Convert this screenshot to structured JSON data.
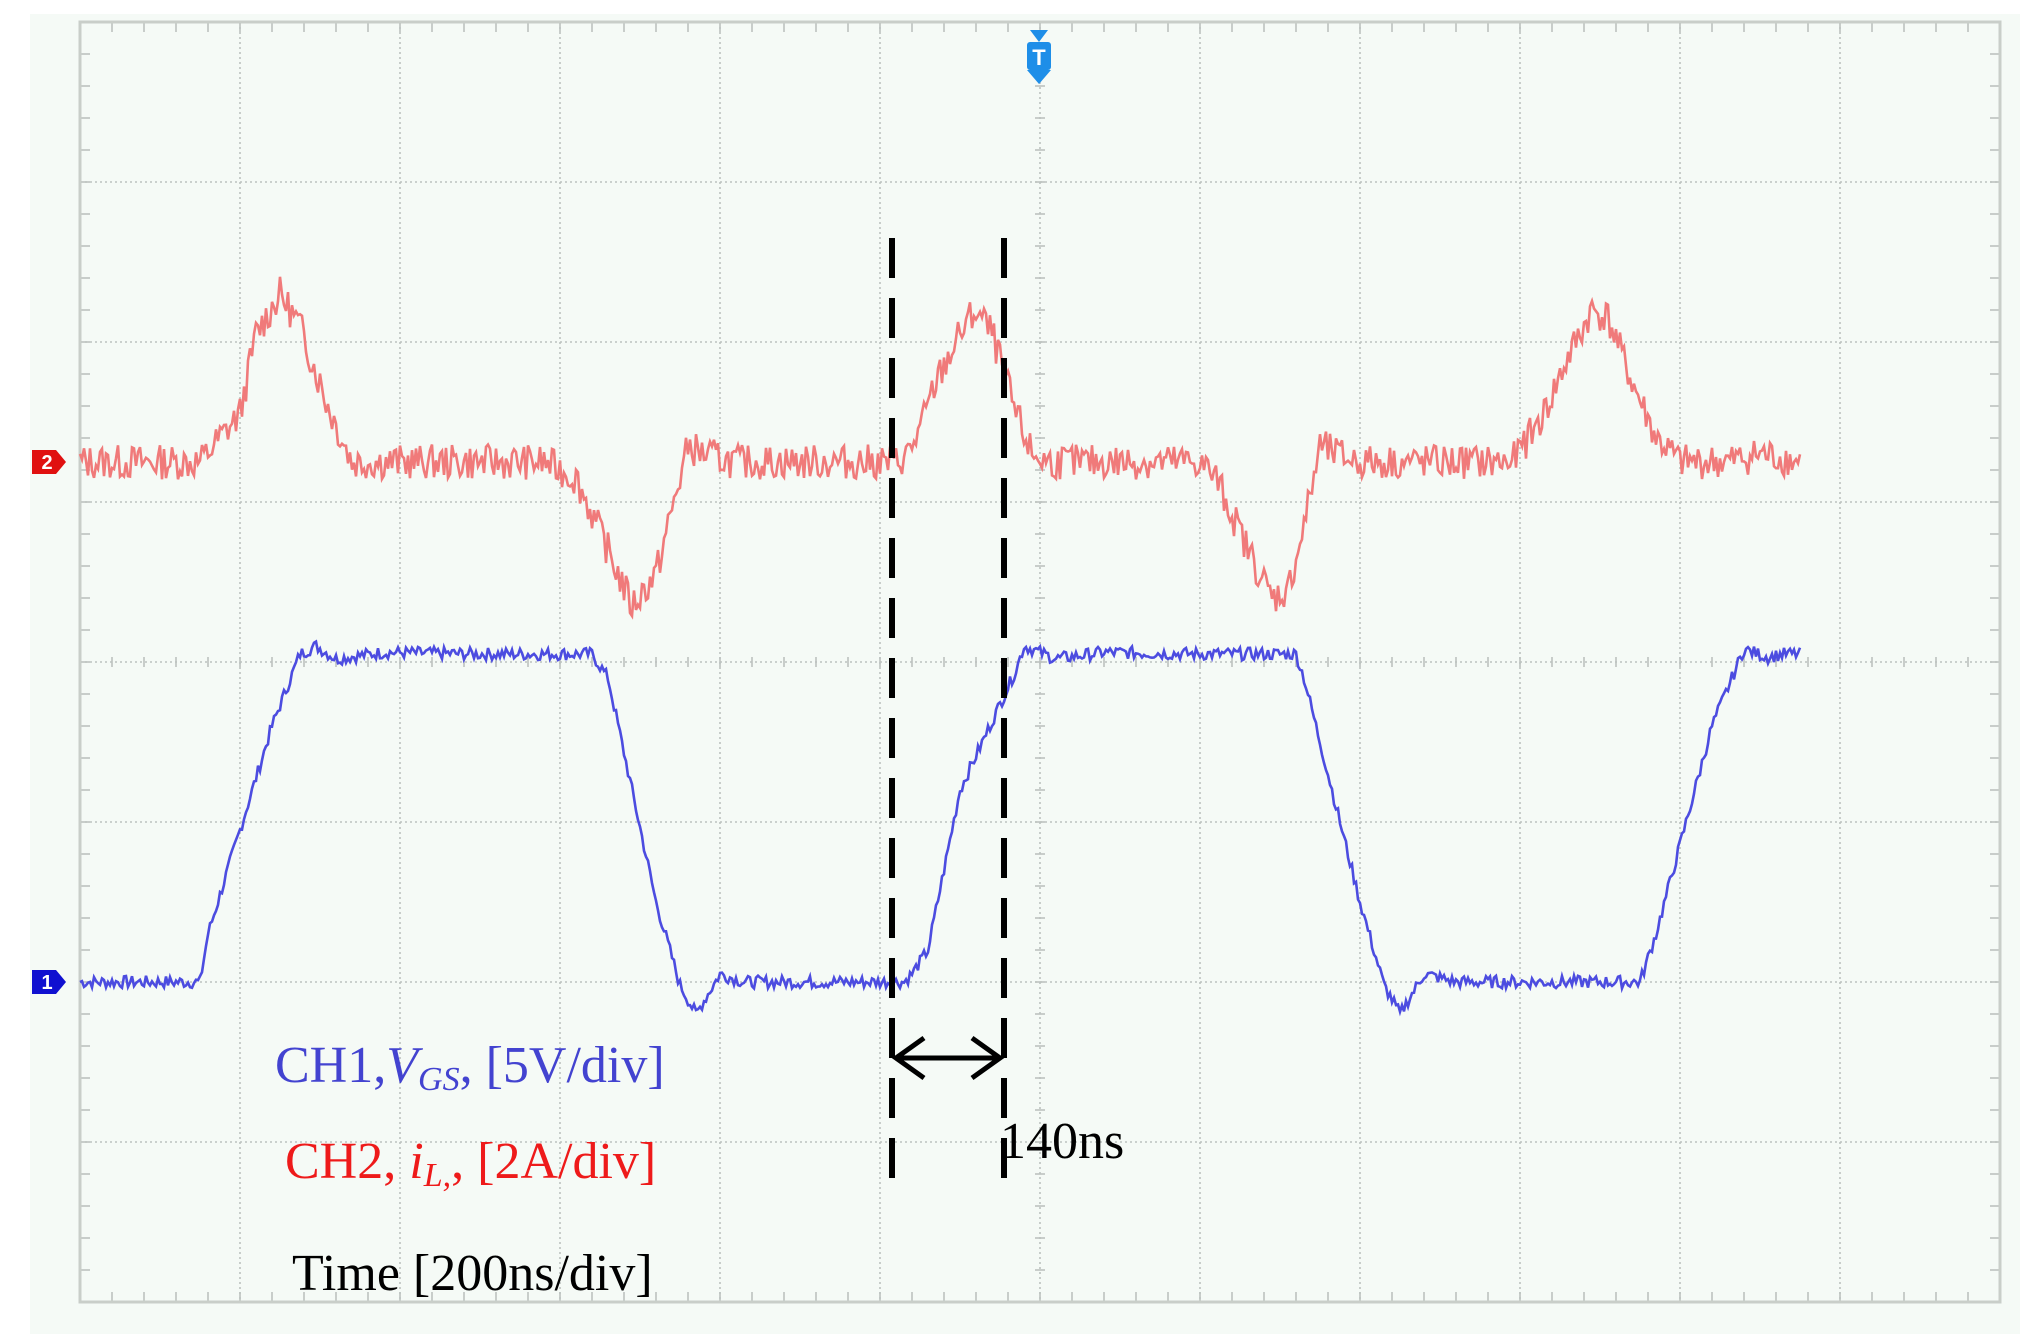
{
  "colors": {
    "background": "#f5faf6",
    "grid": "#bcc2bf",
    "border": "#c9cec9",
    "ch1": "#4c4ce0",
    "ch2": "#f07a7a",
    "ch1_label": "#4343d0",
    "ch2_label": "#ee1a1a",
    "trigger": "#1e8ee8",
    "annotation": "#000000"
  },
  "markers": {
    "ch1": "1",
    "ch2": "2",
    "trigger": "T"
  },
  "labels": {
    "ch1_prefix": "CH1,",
    "ch1_var": "V",
    "ch1_sub": "GS",
    "ch1_suffix": ", [5V/div]",
    "ch2_prefix": "CH2,",
    "ch2_var": "i",
    "ch2_sub": "L,",
    "ch2_suffix": ", [2A/div]",
    "time": "Time [200ns/div]",
    "measurement": "140ns"
  },
  "chart_data": {
    "type": "line",
    "x_unit_div": 200,
    "xlim": [
      -1200,
      1200
    ],
    "ylim": [
      -4,
      4
    ],
    "grid": true,
    "x_divisions": 12,
    "y_divisions": 8,
    "series": [
      {
        "name": "CH1",
        "scale": "5V/div",
        "offset_div": -2,
        "points": [
          [
            -1200,
            0
          ],
          [
            -1050,
            0
          ],
          [
            -1040,
            0.3
          ],
          [
            -960,
            1.6
          ],
          [
            -925,
            2.05
          ],
          [
            -905,
            2.1
          ],
          [
            -880,
            2.02
          ],
          [
            -820,
            2.06
          ],
          [
            -700,
            2.05
          ],
          [
            -560,
            2.05
          ],
          [
            -540,
            1.9
          ],
          [
            -480,
            0.5
          ],
          [
            -450,
            -0.02
          ],
          [
            -430,
            -0.2
          ],
          [
            -400,
            0.05
          ],
          [
            -370,
            0.0
          ],
          [
            -300,
            0
          ],
          [
            -180,
            0
          ],
          [
            -170,
            0
          ],
          [
            -160,
            0.05
          ],
          [
            -140,
            0.2
          ],
          [
            -100,
            1.2
          ],
          [
            -30,
            1.95
          ],
          [
            -20,
            2.1
          ],
          [
            20,
            2.02
          ],
          [
            80,
            2.06
          ],
          [
            200,
            2.05
          ],
          [
            320,
            2.05
          ],
          [
            330,
            1.9
          ],
          [
            400,
            0.5
          ],
          [
            430,
            -0.02
          ],
          [
            450,
            -0.2
          ],
          [
            480,
            0.05
          ],
          [
            520,
            0.0
          ],
          [
            600,
            0
          ],
          [
            750,
            0
          ],
          [
            770,
            0.3
          ],
          [
            840,
            1.6
          ],
          [
            880,
            2.08
          ],
          [
            910,
            2.03
          ],
          [
            930,
            2.05
          ],
          [
            950,
            2.05
          ]
        ]
      },
      {
        "name": "CH2",
        "scale": "2A/div",
        "offset_div": 1.25,
        "points": [
          [
            -1200,
            0
          ],
          [
            -1050,
            0
          ],
          [
            -1000,
            0.3
          ],
          [
            -980,
            0.8
          ],
          [
            -950,
            1.05
          ],
          [
            -925,
            0.85
          ],
          [
            -890,
            0.35
          ],
          [
            -860,
            0.0
          ],
          [
            -800,
            0
          ],
          [
            -620,
            0
          ],
          [
            -580,
            -0.1
          ],
          [
            -540,
            -0.55
          ],
          [
            -510,
            -0.9
          ],
          [
            -480,
            -0.7
          ],
          [
            -460,
            -0.3
          ],
          [
            -440,
            0.1
          ],
          [
            -420,
            0.05
          ],
          [
            -380,
            0
          ],
          [
            -180,
            0
          ],
          [
            -165,
            0.05
          ],
          [
            -150,
            0.2
          ],
          [
            -130,
            0.5
          ],
          [
            -100,
            0.8
          ],
          [
            -80,
            0.95
          ],
          [
            -60,
            0.8
          ],
          [
            -30,
            0.3
          ],
          [
            -10,
            0.05
          ],
          [
            10,
            0
          ],
          [
            200,
            0
          ],
          [
            220,
            -0.1
          ],
          [
            260,
            -0.55
          ],
          [
            290,
            -0.85
          ],
          [
            310,
            -0.8
          ],
          [
            330,
            -0.4
          ],
          [
            350,
            0.1
          ],
          [
            370,
            0.05
          ],
          [
            400,
            0
          ],
          [
            590,
            0
          ],
          [
            630,
            0.3
          ],
          [
            660,
            0.65
          ],
          [
            690,
            0.95
          ],
          [
            710,
            0.9
          ],
          [
            740,
            0.5
          ],
          [
            770,
            0.15
          ],
          [
            800,
            0.0
          ],
          [
            860,
            0.0
          ],
          [
            900,
            0.05
          ],
          [
            950,
            0.0
          ]
        ]
      }
    ],
    "cursors_ns": [
      -185,
      -45
    ],
    "measurement": "140ns"
  }
}
